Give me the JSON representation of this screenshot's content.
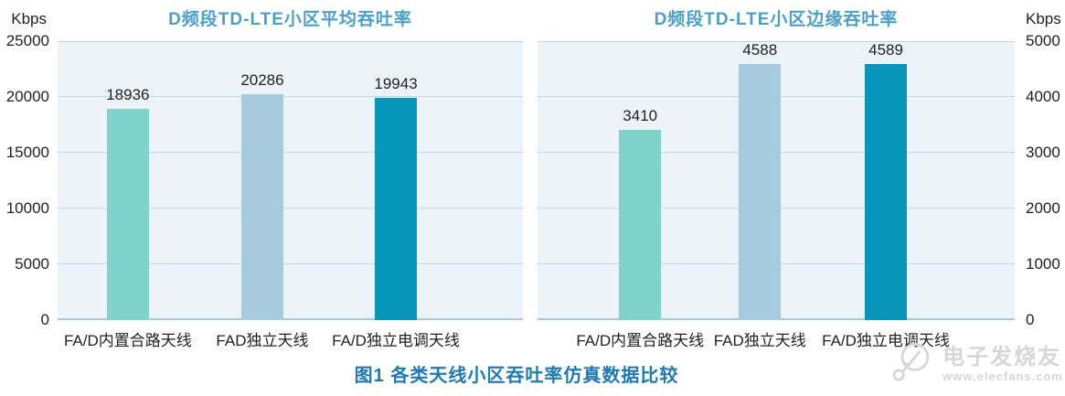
{
  "caption": "图1 各类天线小区吞吐率仿真数据比较",
  "watermark": {
    "brand": "电子发烧友",
    "url": "www.elecfans.com"
  },
  "colors": {
    "bar_palette": [
      "#7fd3cb",
      "#a6cbdf",
      "#0795ba"
    ],
    "plot_bg": "#ecf4f9",
    "gridline": "#bcd7e5",
    "gridline_baseline": "#a3c9dc",
    "title": "#4aa0c9",
    "caption": "#1e7ab2",
    "tick_text": "#1f1f1f",
    "watermark": "#d6d6d6"
  },
  "chart_data": [
    {
      "type": "bar",
      "title": "D频段TD-LTE小区平均吞吐率",
      "ylabel": "Kbps",
      "xlabel": "",
      "categories": [
        "FA/D内置合路天线",
        "FAD独立天线",
        "FA/D独立电调天线"
      ],
      "values": [
        18936,
        20286,
        19943
      ],
      "ylim": [
        0,
        25000
      ],
      "yticks": [
        0,
        5000,
        10000,
        15000,
        20000,
        25000
      ],
      "axis_side": "left",
      "grid": true,
      "legend": "none",
      "bar_centers_pct": [
        15.1,
        44.0,
        72.7
      ]
    },
    {
      "type": "bar",
      "title": "D频段TD-LTE小区边缘吞吐率",
      "ylabel": "Kbps",
      "xlabel": "",
      "categories": [
        "FA/D内置合路天线",
        "FAD独立天线",
        "FA/D独立电调天线"
      ],
      "values": [
        3410,
        4588,
        4589
      ],
      "ylim": [
        0,
        5000
      ],
      "yticks": [
        0,
        1000,
        2000,
        3000,
        4000,
        5000
      ],
      "axis_side": "right",
      "grid": true,
      "legend": "none",
      "bar_centers_pct": [
        21.5,
        46.6,
        73.0
      ]
    }
  ]
}
